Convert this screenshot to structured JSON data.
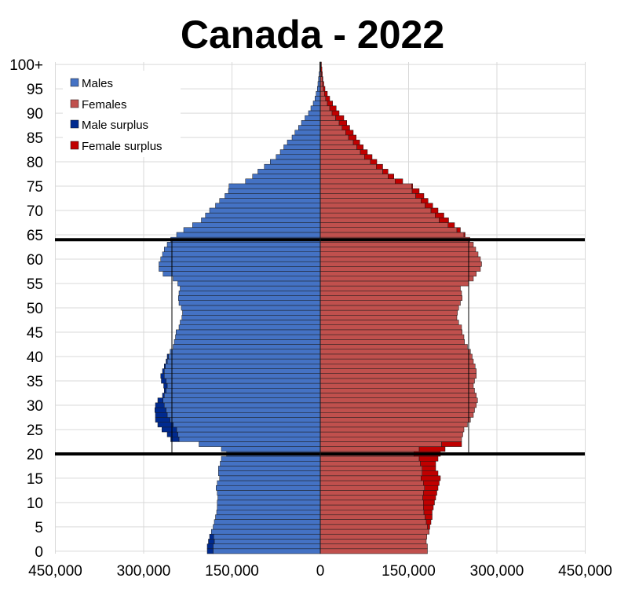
{
  "chart_data": {
    "type": "bar",
    "title": "Canada - 2022",
    "orientation": "horizontal-population-pyramid",
    "xlim": [
      -450000,
      450000
    ],
    "ylim": [
      0,
      100
    ],
    "x_tick_values": [
      -450000,
      -300000,
      -150000,
      0,
      150000,
      300000,
      450000
    ],
    "x_tick_labels": [
      "450,000",
      "300,000",
      "150,000",
      "0",
      "150,000",
      "300,000",
      "450,000"
    ],
    "y_tick_values": [
      0,
      5,
      10,
      15,
      20,
      25,
      30,
      35,
      40,
      45,
      50,
      55,
      60,
      65,
      70,
      75,
      80,
      85,
      90,
      95,
      100
    ],
    "y_tick_labels": [
      "0",
      "5",
      "10",
      "15",
      "20",
      "25",
      "30",
      "35",
      "40",
      "45",
      "50",
      "55",
      "60",
      "65",
      "70",
      "75",
      "80",
      "85",
      "90",
      "95",
      "100+"
    ],
    "grid": true,
    "legend_position": "top-left",
    "legend": [
      "Males",
      "Females",
      "Male surplus",
      "Female surplus"
    ],
    "colors": {
      "males": "#4472c4",
      "females": "#c0504d",
      "male_surplus": "#002a8f",
      "female_surplus": "#c00000",
      "bar_stroke": "#1a1a1a",
      "grid": "#d9d9d9",
      "marker_lines": "#000000"
    },
    "reference_lines": {
      "ages": [
        21,
        65
      ],
      "population": 252000
    },
    "ages": [
      0,
      1,
      2,
      3,
      4,
      5,
      6,
      7,
      8,
      9,
      10,
      11,
      12,
      13,
      14,
      15,
      16,
      17,
      18,
      19,
      20,
      21,
      22,
      23,
      24,
      25,
      26,
      27,
      28,
      29,
      30,
      31,
      32,
      33,
      34,
      35,
      36,
      37,
      38,
      39,
      40,
      41,
      42,
      43,
      44,
      45,
      46,
      47,
      48,
      49,
      50,
      51,
      52,
      53,
      54,
      55,
      56,
      57,
      58,
      59,
      60,
      61,
      62,
      63,
      64,
      65,
      66,
      67,
      68,
      69,
      70,
      71,
      72,
      73,
      74,
      75,
      76,
      77,
      78,
      79,
      80,
      81,
      82,
      83,
      84,
      85,
      86,
      87,
      88,
      89,
      90,
      91,
      92,
      93,
      94,
      95,
      96,
      97,
      98,
      99,
      100
    ],
    "series": [
      {
        "name": "Males",
        "values": [
          192000,
          192000,
          190000,
          188000,
          185000,
          182000,
          180000,
          178000,
          176000,
          175000,
          175000,
          174000,
          175000,
          177000,
          175000,
          171000,
          173000,
          173000,
          170000,
          168000,
          159000,
          168000,
          206000,
          254000,
          260000,
          269000,
          276000,
          280000,
          280000,
          281000,
          280000,
          276000,
          268000,
          265000,
          266000,
          270000,
          271000,
          268000,
          265000,
          262000,
          260000,
          255000,
          250000,
          248000,
          246000,
          245000,
          240000,
          238000,
          235000,
          234000,
          236000,
          240000,
          241000,
          240000,
          238000,
          242000,
          250000,
          267000,
          274000,
          274000,
          271000,
          268000,
          265000,
          260000,
          254000,
          244000,
          232000,
          217000,
          202000,
          195000,
          188000,
          178000,
          171000,
          162000,
          156000,
          155000,
          127000,
          115000,
          106000,
          95000,
          85000,
          75000,
          68000,
          62000,
          56000,
          48000,
          43000,
          37000,
          32000,
          26000,
          20000,
          16000,
          12000,
          9000,
          7000,
          5000,
          4000,
          3000,
          2000,
          1000,
          1000
        ]
      },
      {
        "name": "Females",
        "values": [
          182000,
          182000,
          180000,
          181000,
          185000,
          186000,
          188000,
          190000,
          190000,
          192000,
          194000,
          196000,
          198000,
          200000,
          202000,
          204000,
          200000,
          196000,
          196000,
          200000,
          204000,
          212000,
          240000,
          240000,
          242000,
          244000,
          250000,
          255000,
          260000,
          262000,
          265000,
          267000,
          265000,
          262000,
          260000,
          262000,
          265000,
          265000,
          263000,
          260000,
          258000,
          255000,
          250000,
          245000,
          244000,
          241000,
          240000,
          235000,
          232000,
          233000,
          235000,
          238000,
          241000,
          240000,
          238000,
          252000,
          260000,
          265000,
          272000,
          274000,
          272000,
          268000,
          264000,
          260000,
          254000,
          246000,
          238000,
          228000,
          218000,
          210000,
          200000,
          191000,
          183000,
          176000,
          168000,
          157000,
          140000,
          125000,
          115000,
          106000,
          96000,
          88000,
          80000,
          73000,
          67000,
          61000,
          56000,
          50000,
          45000,
          40000,
          32000,
          27000,
          21000,
          16000,
          12000,
          8000,
          6000,
          4500,
          3500,
          2800,
          2000
        ]
      },
      {
        "name": "Male surplus",
        "values": [
          10000,
          10000,
          10000,
          7000,
          0,
          0,
          0,
          0,
          0,
          0,
          0,
          0,
          0,
          0,
          0,
          0,
          0,
          0,
          0,
          0,
          0,
          0,
          0,
          14000,
          18000,
          25000,
          26000,
          25000,
          20000,
          19000,
          15000,
          9000,
          3000,
          3000,
          6000,
          8000,
          6000,
          3000,
          2000,
          2000,
          2000,
          0,
          0,
          0,
          0,
          0,
          0,
          0,
          0,
          0,
          0,
          0,
          0,
          0,
          0,
          0,
          0,
          0,
          0,
          0,
          0,
          0,
          0,
          0,
          0,
          0,
          0,
          0,
          0,
          0,
          0,
          0,
          0,
          0,
          0,
          0,
          0,
          0,
          0,
          0,
          0,
          0,
          0,
          0,
          0,
          0,
          0,
          0,
          0,
          0,
          0,
          0,
          0,
          0,
          0,
          0,
          0,
          0,
          0,
          0,
          0
        ]
      },
      {
        "name": "Female surplus",
        "values": [
          0,
          0,
          0,
          0,
          0,
          4000,
          8000,
          12000,
          14000,
          17000,
          19000,
          22000,
          23000,
          23000,
          27000,
          33000,
          27000,
          23000,
          26000,
          32000,
          45000,
          44000,
          34000,
          0,
          0,
          0,
          0,
          0,
          0,
          0,
          0,
          0,
          0,
          0,
          0,
          0,
          0,
          0,
          0,
          0,
          0,
          0,
          0,
          0,
          0,
          0,
          0,
          0,
          0,
          0,
          0,
          0,
          0,
          0,
          0,
          0,
          0,
          0,
          0,
          0,
          0,
          0,
          0,
          0,
          0,
          2000,
          6000,
          11000,
          16000,
          15000,
          12000,
          13000,
          12000,
          14000,
          12000,
          2000,
          13000,
          10000,
          9000,
          11000,
          11000,
          13000,
          12000,
          11000,
          11000,
          13000,
          13000,
          13000,
          13000,
          14000,
          12000,
          11000,
          9000,
          7000,
          5000,
          3000,
          2000,
          1500,
          1500,
          1800,
          1000
        ]
      }
    ]
  }
}
